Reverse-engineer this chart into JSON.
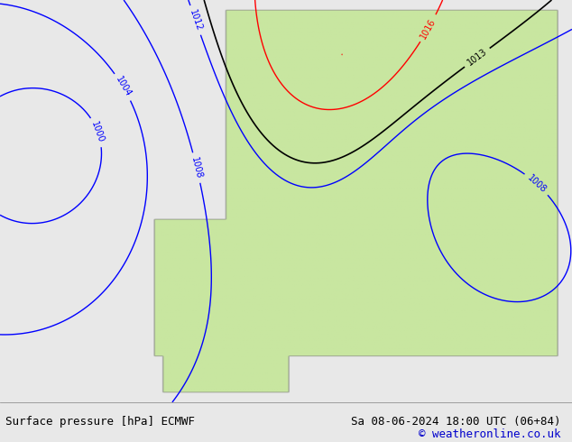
{
  "title_left": "Surface pressure [hPa] ECMWF",
  "title_right": "Sa 08-06-2024 18:00 UTC (06+84)",
  "copyright": "© weatheronline.co.uk",
  "background_color": "#e8e8e8",
  "land_color": "#c8e6a0",
  "ocean_color": "#e8e8e8",
  "fig_width": 6.34,
  "fig_height": 4.9,
  "dpi": 100,
  "bottom_bar_color": "#ffffff",
  "title_fontsize": 9,
  "copyright_color": "#0000cc",
  "isobar_red_color": "#ff0000",
  "isobar_blue_color": "#0000ff",
  "isobar_black_color": "#000000",
  "label_fontsize": 7
}
